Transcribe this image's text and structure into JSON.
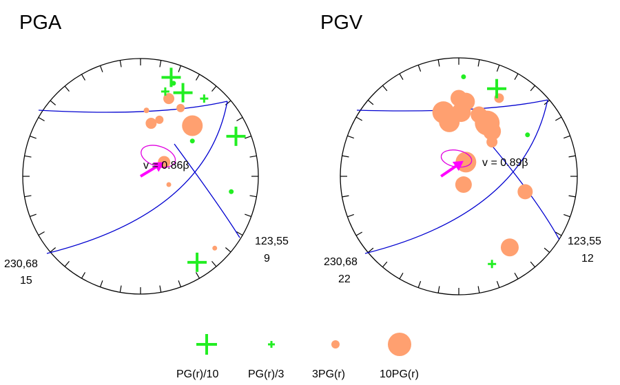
{
  "colors": {
    "circle": "#000000",
    "plane": "#0000d0",
    "plus": "#22ee22",
    "dot": "#22ee22",
    "bubble": "#ffa070",
    "ellipse": "#e000e0",
    "arrow": "#ff00ff"
  },
  "panels": [
    {
      "title": "PGA",
      "velocity_label": "v = 0.86β",
      "plane_a": {
        "label_top": "230,68",
        "label_bottom": "15"
      },
      "plane_b": {
        "label_top": "123,55",
        "label_bottom": "9"
      },
      "markers": [
        {
          "kind": "plus-large",
          "u": 0.26,
          "v": 0.84
        },
        {
          "kind": "plus-large",
          "u": 0.36,
          "v": 0.71
        },
        {
          "kind": "plus-large",
          "u": 0.81,
          "v": 0.34
        },
        {
          "kind": "plus-large",
          "u": 0.48,
          "v": -0.73
        },
        {
          "kind": "plus-small",
          "u": 0.54,
          "v": 0.66
        },
        {
          "kind": "plus-small",
          "u": 0.21,
          "v": 0.72
        },
        {
          "kind": "dot",
          "u": 0.28,
          "v": 0.79
        },
        {
          "kind": "dot",
          "u": 0.44,
          "v": 0.3
        },
        {
          "kind": "dot",
          "u": 0.77,
          "v": -0.13
        },
        {
          "kind": "bubble",
          "u": 0.24,
          "v": 0.66,
          "size": 1.6
        },
        {
          "kind": "bubble",
          "u": 0.34,
          "v": 0.58,
          "size": 1.2
        },
        {
          "kind": "bubble",
          "u": 0.05,
          "v": 0.56,
          "size": 0.8
        },
        {
          "kind": "bubble",
          "u": 0.16,
          "v": 0.48,
          "size": 1.2
        },
        {
          "kind": "bubble",
          "u": 0.09,
          "v": 0.45,
          "size": 1.6
        },
        {
          "kind": "bubble",
          "u": 0.44,
          "v": 0.43,
          "size": 3.0
        },
        {
          "kind": "bubble",
          "u": 0.2,
          "v": 0.12,
          "size": 1.8
        },
        {
          "kind": "bubble",
          "u": 0.24,
          "v": -0.07,
          "size": 0.7
        },
        {
          "kind": "bubble",
          "u": 0.63,
          "v": -0.61,
          "size": 0.7
        }
      ],
      "ellipse": {
        "u": 0.15,
        "v": 0.17,
        "ru": 0.15,
        "rv": 0.085,
        "rot": 18
      },
      "arrow": {
        "u0": 0.0,
        "v0": 0.0,
        "u1": 0.2,
        "v1": 0.12
      }
    },
    {
      "title": "PGV",
      "velocity_label": "v = 0.89β",
      "plane_a": {
        "label_top": "230,68",
        "label_bottom": "22"
      },
      "plane_b": {
        "label_top": "123,55",
        "label_bottom": "12"
      },
      "markers": [
        {
          "kind": "plus-large",
          "u": 0.32,
          "v": 0.74
        },
        {
          "kind": "plus-small",
          "u": 0.28,
          "v": -0.74
        },
        {
          "kind": "dot",
          "u": 0.04,
          "v": 0.84
        },
        {
          "kind": "dot",
          "u": 0.58,
          "v": 0.35
        },
        {
          "kind": "bubble",
          "u": -0.13,
          "v": 0.54,
          "size": 3.2
        },
        {
          "kind": "bubble",
          "u": -0.08,
          "v": 0.46,
          "size": 3.0
        },
        {
          "kind": "bubble",
          "u": 0.0,
          "v": 0.66,
          "size": 2.4
        },
        {
          "kind": "bubble",
          "u": 0.06,
          "v": 0.63,
          "size": 2.6
        },
        {
          "kind": "bubble",
          "u": 0.02,
          "v": 0.54,
          "size": 2.8
        },
        {
          "kind": "bubble",
          "u": 0.17,
          "v": 0.52,
          "size": 2.4
        },
        {
          "kind": "bubble",
          "u": 0.24,
          "v": 0.45,
          "size": 3.6
        },
        {
          "kind": "bubble",
          "u": 0.28,
          "v": 0.38,
          "size": 2.6
        },
        {
          "kind": "bubble",
          "u": 0.28,
          "v": 0.29,
          "size": 1.6
        },
        {
          "kind": "bubble",
          "u": 0.34,
          "v": 0.66,
          "size": 1.4
        },
        {
          "kind": "bubble",
          "u": 0.06,
          "v": 0.12,
          "size": 3.0
        },
        {
          "kind": "bubble",
          "u": 0.04,
          "v": -0.07,
          "size": 2.4
        },
        {
          "kind": "bubble",
          "u": 0.56,
          "v": -0.13,
          "size": 2.2
        },
        {
          "kind": "bubble",
          "u": 0.43,
          "v": -0.6,
          "size": 2.6
        }
      ],
      "ellipse": {
        "u": -0.02,
        "v": 0.15,
        "ru": 0.13,
        "rv": 0.07,
        "rot": 10
      },
      "arrow": {
        "u0": -0.15,
        "v0": 0.0,
        "u1": 0.04,
        "v1": 0.13
      }
    }
  ],
  "legend": [
    {
      "kind": "plus-large",
      "label": "PG(r)/10"
    },
    {
      "kind": "plus-small",
      "label": "PG(r)/3"
    },
    {
      "kind": "bubble-small",
      "label": "3PG(r)"
    },
    {
      "kind": "bubble-large",
      "label": "10PG(r)"
    }
  ]
}
